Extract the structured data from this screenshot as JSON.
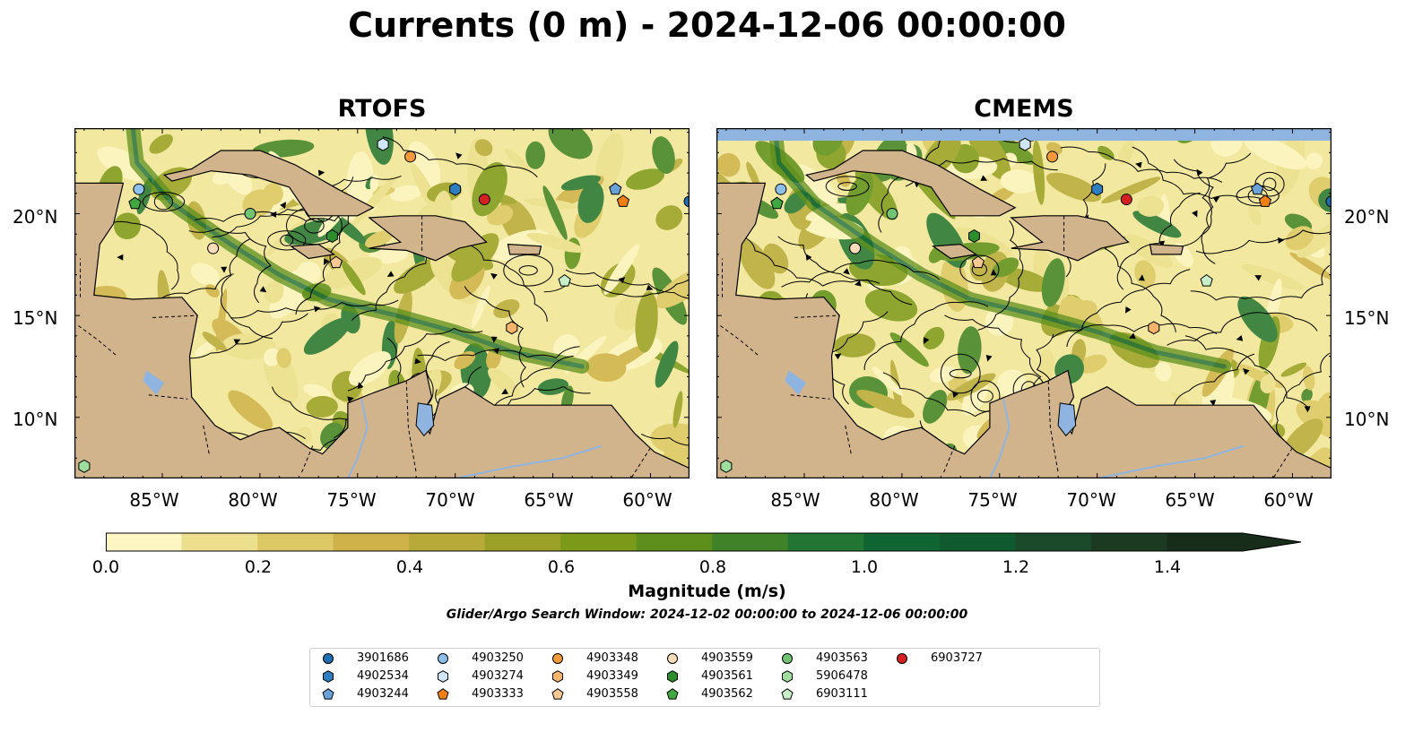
{
  "title": "Currents (0 m) - 2024-12-06 00:00:00",
  "panels": [
    {
      "id": "rtofs",
      "title": "RTOFS"
    },
    {
      "id": "cmems",
      "title": "CMEMS"
    }
  ],
  "map": {
    "lon_range": [
      -89.5,
      -58.0
    ],
    "lat_range": [
      7.0,
      24.2
    ],
    "lat_ticks": [
      "20°N",
      "15°N",
      "10°N"
    ],
    "lon_ticks": [
      "85°W",
      "80°W",
      "75°W",
      "70°W",
      "65°W",
      "60°W"
    ],
    "colors": {
      "land": "#d2b48c",
      "lake": "#8fb4e0",
      "ocean_fill": "#f2e8a0"
    }
  },
  "colorbar": {
    "label": "Magnitude (m/s)",
    "ticks": [
      "0.0",
      "0.2",
      "0.4",
      "0.6",
      "0.8",
      "1.0",
      "1.2",
      "1.4"
    ],
    "colors": [
      "#fdf6c3",
      "#ece08f",
      "#dcc865",
      "#cfb34a",
      "#b8aa3a",
      "#9aa126",
      "#7c9a1a",
      "#5e8f1c",
      "#3f8228",
      "#227532",
      "#0f6633",
      "#105a30",
      "#1a4a2a",
      "#1c3a22",
      "#182c1a"
    ],
    "extend": "max"
  },
  "search_window": "Glider/Argo Search Window: 2024-12-02 00:00:00 to 2024-12-06 00:00:00",
  "legend": [
    {
      "id": "3901686",
      "marker": "circle",
      "color": "#1f6fb4"
    },
    {
      "id": "4902534",
      "marker": "hexagon",
      "color": "#2e7fc0"
    },
    {
      "id": "4903244",
      "marker": "pentagon",
      "color": "#6aa2d8"
    },
    {
      "id": "4903250",
      "marker": "circle",
      "color": "#8cc0e8"
    },
    {
      "id": "4903274",
      "marker": "hexagon",
      "color": "#cfe6f7"
    },
    {
      "id": "4903333",
      "marker": "pentagon",
      "color": "#f07f14"
    },
    {
      "id": "4903348",
      "marker": "circle",
      "color": "#f39a3c"
    },
    {
      "id": "4903349",
      "marker": "hexagon",
      "color": "#f8b46a"
    },
    {
      "id": "4903558",
      "marker": "pentagon",
      "color": "#f7c892"
    },
    {
      "id": "4903559",
      "marker": "circle",
      "color": "#fbdcb9"
    },
    {
      "id": "4903561",
      "marker": "hexagon",
      "color": "#2c8f2c"
    },
    {
      "id": "4903562",
      "marker": "pentagon",
      "color": "#41a841"
    },
    {
      "id": "4903563",
      "marker": "circle",
      "color": "#72c472"
    },
    {
      "id": "5906478",
      "marker": "hexagon",
      "color": "#9edd9e"
    },
    {
      "id": "6903111",
      "marker": "pentagon",
      "color": "#c8f0c8"
    },
    {
      "id": "6903727",
      "marker": "circle",
      "color": "#d42020"
    }
  ],
  "float_positions": [
    {
      "id": "3901686",
      "lon": -58.0,
      "lat": 20.6
    },
    {
      "id": "4902534",
      "lon": -70.0,
      "lat": 21.2
    },
    {
      "id": "4903244",
      "lon": -61.8,
      "lat": 21.2
    },
    {
      "id": "4903250",
      "lon": -86.2,
      "lat": 21.2
    },
    {
      "id": "4903274",
      "lon": -73.7,
      "lat": 23.4
    },
    {
      "id": "4903333",
      "lon": -61.4,
      "lat": 20.6
    },
    {
      "id": "4903348",
      "lon": -72.3,
      "lat": 22.8
    },
    {
      "id": "4903349",
      "lon": -67.1,
      "lat": 14.4
    },
    {
      "id": "4903558",
      "lon": -76.1,
      "lat": 17.6
    },
    {
      "id": "4903559",
      "lon": -82.4,
      "lat": 18.3
    },
    {
      "id": "4903561",
      "lon": -76.3,
      "lat": 18.9
    },
    {
      "id": "4903562",
      "lon": -86.4,
      "lat": 20.5
    },
    {
      "id": "4903563",
      "lon": -80.5,
      "lat": 20.0
    },
    {
      "id": "5906478",
      "lon": -89.0,
      "lat": 7.6
    },
    {
      "id": "6903111",
      "lon": -64.4,
      "lat": 16.7
    },
    {
      "id": "6903727",
      "lon": -68.5,
      "lat": 20.7
    }
  ]
}
